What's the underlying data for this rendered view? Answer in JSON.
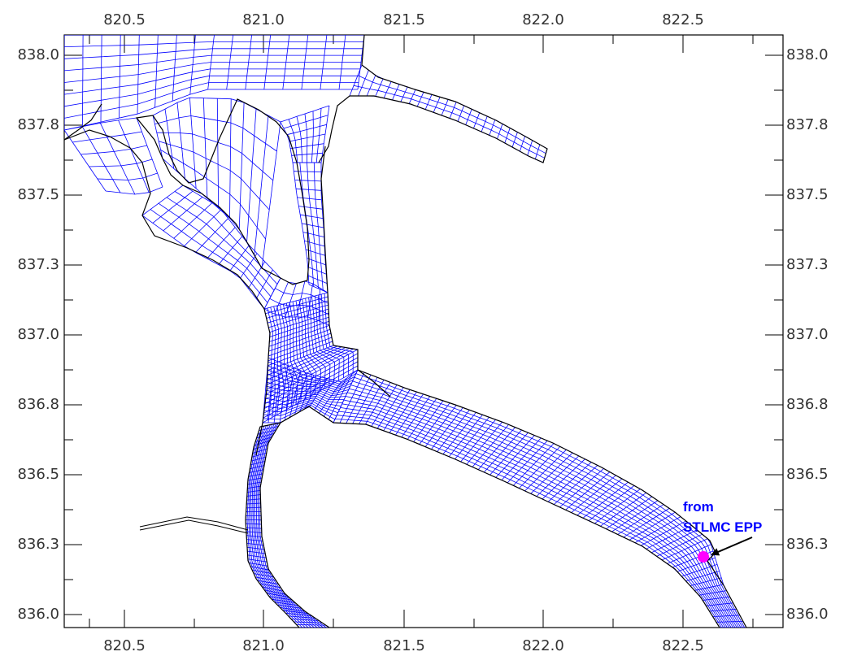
{
  "map": {
    "x_ticks": [
      "820.5",
      "821.0",
      "821.5",
      "822.0",
      "822.5"
    ],
    "y_ticks": [
      "838.0",
      "837.8",
      "837.5",
      "837.3",
      "837.0",
      "836.8",
      "836.5",
      "836.3",
      "836.0"
    ],
    "annotation": {
      "line1": "from",
      "line2": "STLMC EPP",
      "marker_color": "#ff00ff",
      "text_color": "#0000ff"
    },
    "grid_color": "#0000ff",
    "boundary_color": "#000000"
  }
}
